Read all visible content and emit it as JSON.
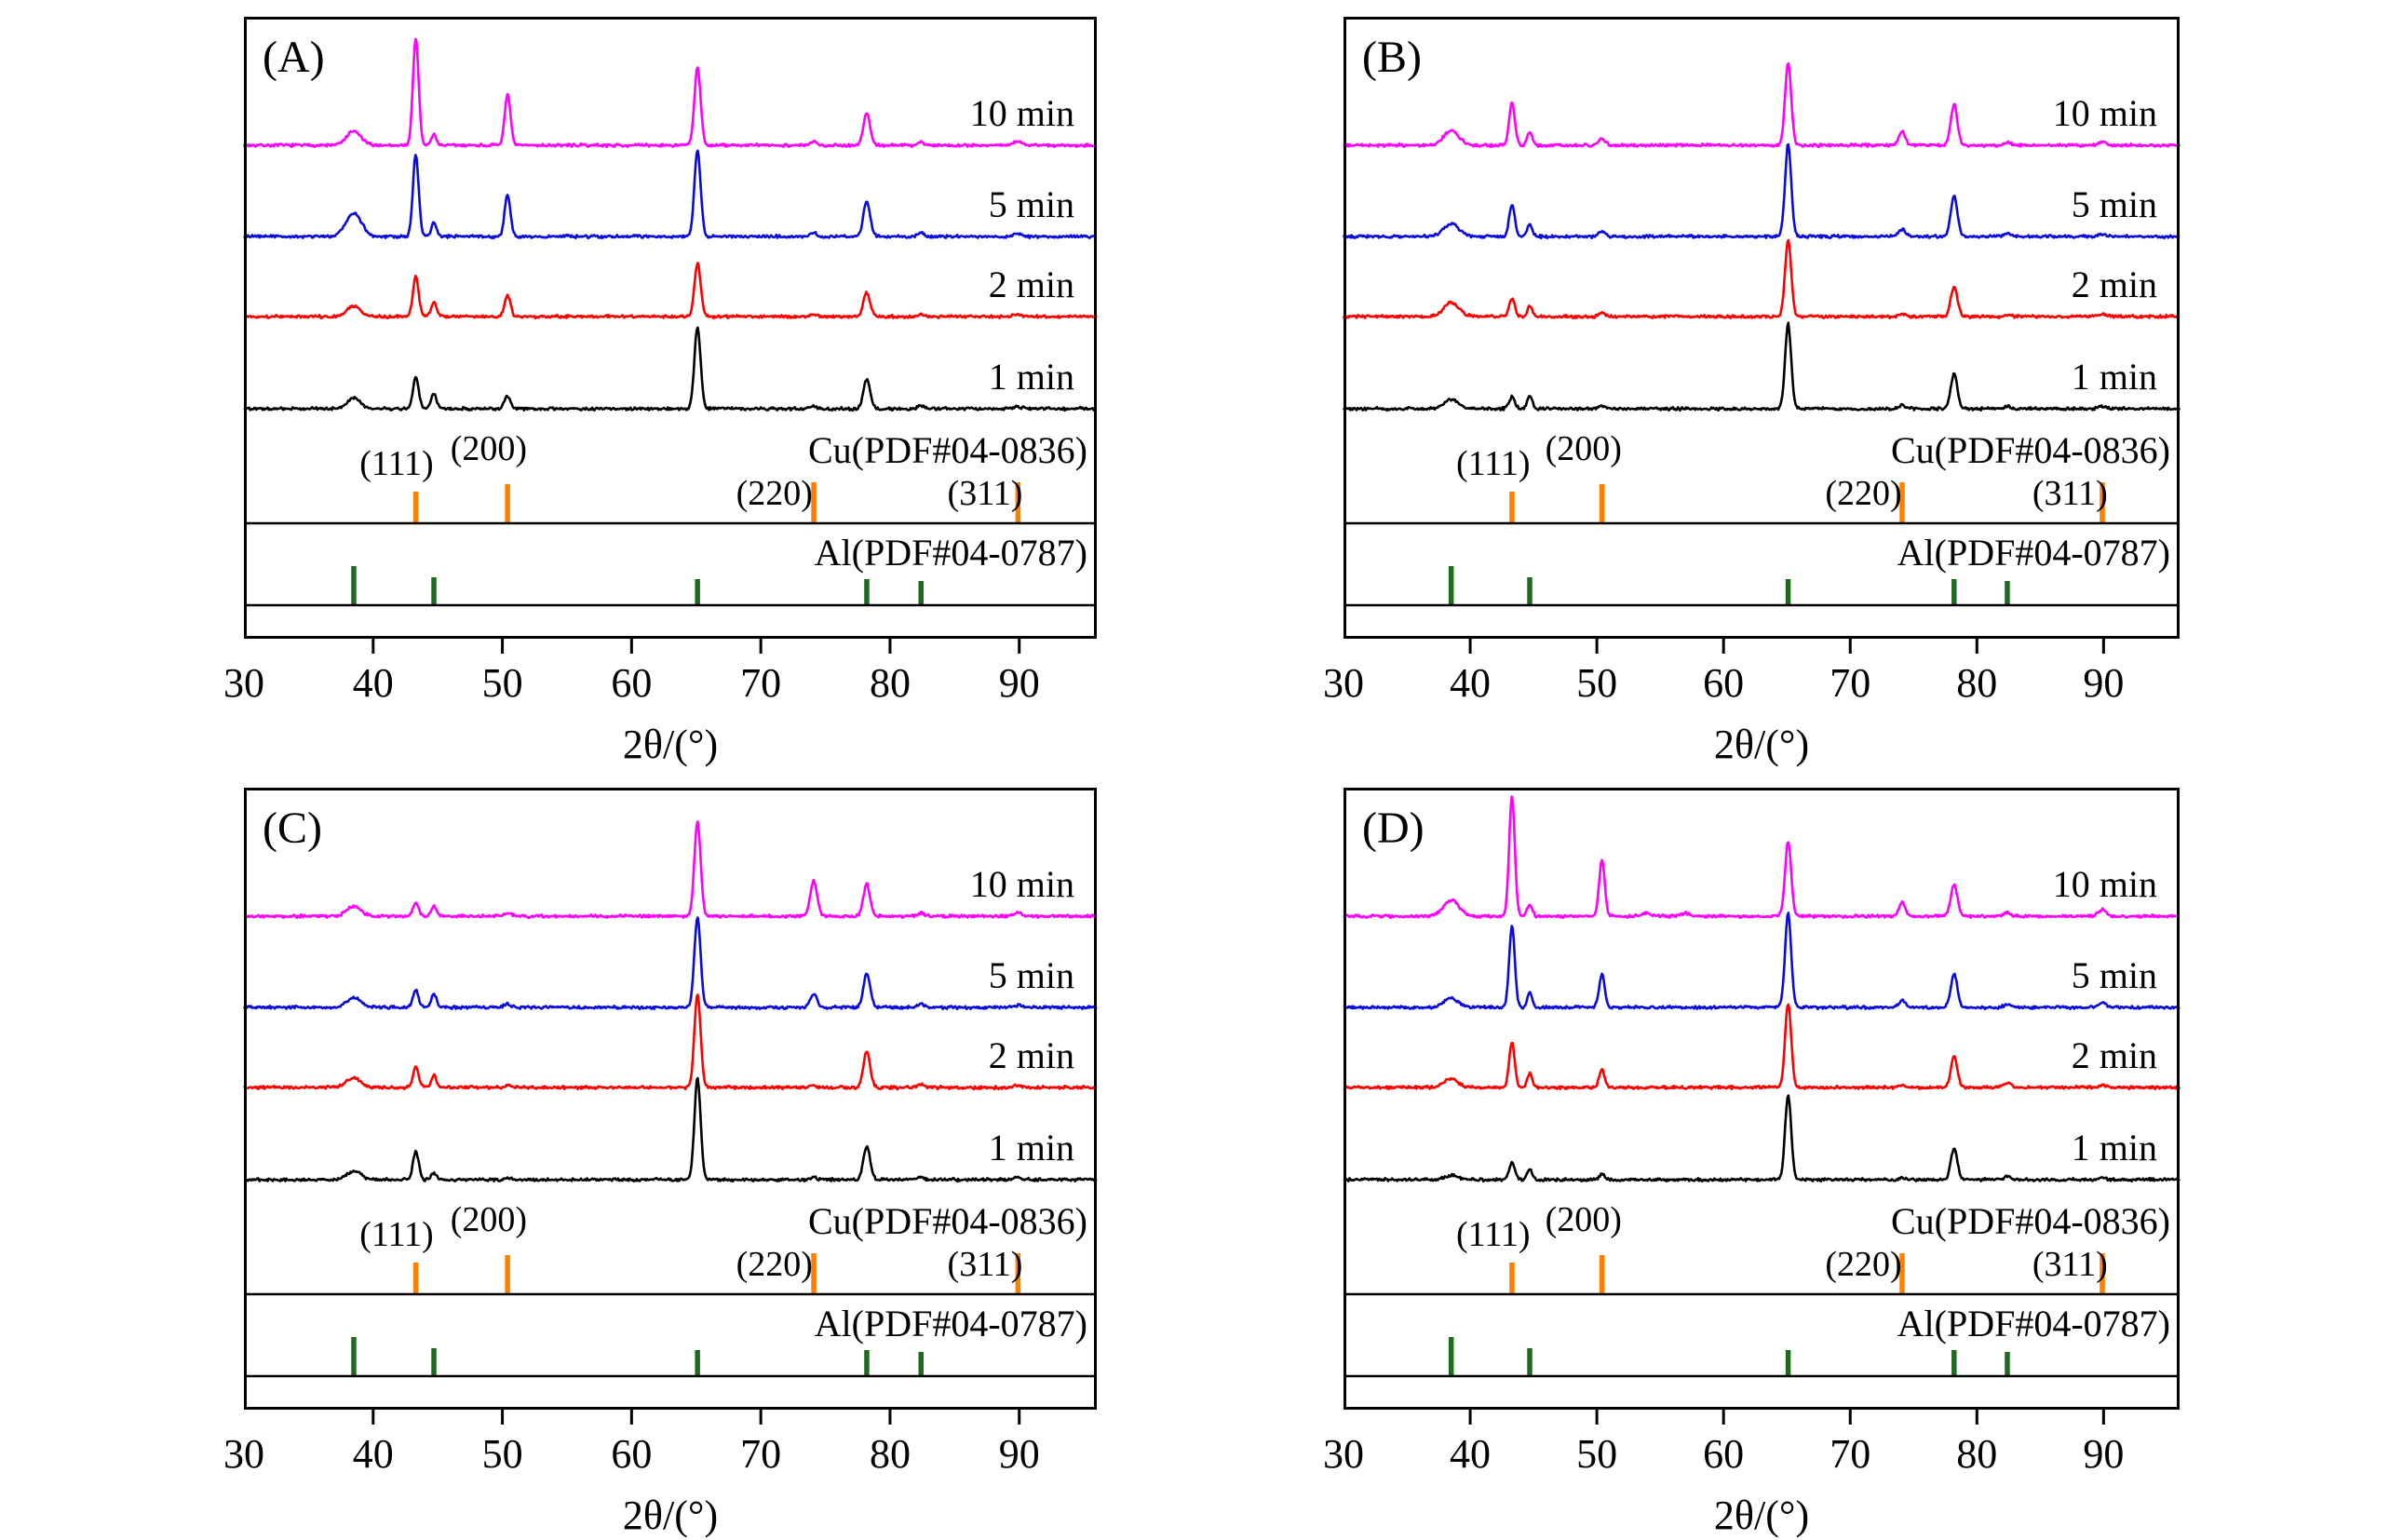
{
  "chart_data": {
    "type": "line",
    "title": "",
    "xlabel": "2θ/(°)",
    "x_range": [
      30,
      96
    ],
    "x_tick_labels": [
      30,
      40,
      50,
      60,
      70,
      80,
      90
    ],
    "x_tick_marks": [
      40,
      50,
      60,
      70,
      80,
      90
    ],
    "y_axis": "intensity (a.u.), stacked offsets, no y ticks shown",
    "peak_format": [
      "two_theta_deg",
      "relative_intensity",
      "sigma_deg"
    ],
    "references": [
      {
        "name": "Cu(PDF#04-0836)",
        "color": "#FF8000",
        "ticks": [
          {
            "two_theta": 43.3,
            "hkl": "(111)",
            "h": 34
          },
          {
            "two_theta": 50.4,
            "hkl": "(200)",
            "h": 42
          },
          {
            "two_theta": 74.1,
            "hkl": "(220)",
            "h": 44
          },
          {
            "two_theta": 89.9,
            "hkl": "(311)",
            "h": 44
          }
        ]
      },
      {
        "name": "Al(PDF#04-0787)",
        "color": "#1E6B1E",
        "ticks": [
          {
            "two_theta": 38.5,
            "h": 42
          },
          {
            "two_theta": 44.7,
            "h": 30
          },
          {
            "two_theta": 65.1,
            "h": 28
          },
          {
            "two_theta": 78.2,
            "h": 28
          },
          {
            "two_theta": 82.4,
            "h": 26
          }
        ]
      }
    ],
    "panels": [
      {
        "label": "(A)",
        "series": [
          {
            "name": "10 min",
            "color": "#FF00FF",
            "peaks": [
              [
                38.5,
                13,
                0.55
              ],
              [
                43.3,
                100,
                0.22
              ],
              [
                44.7,
                10,
                0.2
              ],
              [
                50.4,
                48,
                0.22
              ],
              [
                65.1,
                72,
                0.24
              ],
              [
                74.1,
                3,
                0.25
              ],
              [
                78.2,
                30,
                0.26
              ],
              [
                82.4,
                3,
                0.25
              ],
              [
                89.9,
                4,
                0.3
              ]
            ]
          },
          {
            "name": "5 min",
            "color": "#0B0BDC",
            "peaks": [
              [
                38.5,
                22,
                0.6
              ],
              [
                43.3,
                77,
                0.22
              ],
              [
                44.7,
                13,
                0.2
              ],
              [
                50.4,
                40,
                0.22
              ],
              [
                65.1,
                81,
                0.24
              ],
              [
                74.1,
                3,
                0.25
              ],
              [
                78.2,
                33,
                0.26
              ],
              [
                82.4,
                3,
                0.25
              ],
              [
                89.9,
                3,
                0.3
              ]
            ]
          },
          {
            "name": "2 min",
            "color": "#FF0000",
            "peaks": [
              [
                38.5,
                10,
                0.5
              ],
              [
                43.3,
                38,
                0.22
              ],
              [
                44.7,
                14,
                0.2
              ],
              [
                50.4,
                20,
                0.22
              ],
              [
                65.1,
                50,
                0.24
              ],
              [
                74.1,
                2,
                0.25
              ],
              [
                78.2,
                22,
                0.26
              ],
              [
                82.4,
                2,
                0.25
              ],
              [
                89.9,
                2,
                0.3
              ]
            ]
          },
          {
            "name": "1 min",
            "color": "#000000",
            "peaks": [
              [
                38.5,
                10,
                0.5
              ],
              [
                43.3,
                30,
                0.22
              ],
              [
                44.7,
                15,
                0.2
              ],
              [
                50.4,
                12,
                0.22
              ],
              [
                65.1,
                76,
                0.24
              ],
              [
                74.1,
                2,
                0.25
              ],
              [
                78.2,
                28,
                0.26
              ],
              [
                82.4,
                3,
                0.25
              ],
              [
                89.9,
                2,
                0.3
              ]
            ]
          }
        ]
      },
      {
        "label": "(B)",
        "series": [
          {
            "name": "10 min",
            "color": "#FF00FF",
            "peaks": [
              [
                38.5,
                14,
                0.6
              ],
              [
                43.3,
                40,
                0.22
              ],
              [
                44.7,
                12,
                0.2
              ],
              [
                50.4,
                7,
                0.25
              ],
              [
                65.1,
                77,
                0.24
              ],
              [
                74.1,
                13,
                0.25
              ],
              [
                78.2,
                38,
                0.26
              ],
              [
                82.4,
                3,
                0.25
              ],
              [
                89.9,
                3,
                0.3
              ]
            ]
          },
          {
            "name": "5 min",
            "color": "#0B0BDC",
            "peaks": [
              [
                38.5,
                12,
                0.6
              ],
              [
                43.3,
                30,
                0.22
              ],
              [
                44.7,
                11,
                0.2
              ],
              [
                50.4,
                5,
                0.25
              ],
              [
                65.1,
                87,
                0.24
              ],
              [
                74.1,
                7,
                0.25
              ],
              [
                78.2,
                38,
                0.26
              ],
              [
                82.4,
                3,
                0.25
              ],
              [
                89.9,
                2,
                0.3
              ]
            ]
          },
          {
            "name": "2 min",
            "color": "#FF0000",
            "peaks": [
              [
                38.5,
                13,
                0.6
              ],
              [
                43.3,
                17,
                0.22
              ],
              [
                44.7,
                10,
                0.2
              ],
              [
                50.4,
                4,
                0.25
              ],
              [
                65.1,
                72,
                0.24
              ],
              [
                74.1,
                3,
                0.25
              ],
              [
                78.2,
                28,
                0.26
              ],
              [
                82.4,
                2,
                0.25
              ],
              [
                89.9,
                2,
                0.3
              ]
            ]
          },
          {
            "name": "1 min",
            "color": "#000000",
            "peaks": [
              [
                38.5,
                9,
                0.55
              ],
              [
                43.3,
                11,
                0.22
              ],
              [
                44.7,
                12,
                0.2
              ],
              [
                50.4,
                3,
                0.25
              ],
              [
                65.1,
                79,
                0.24
              ],
              [
                74.1,
                3,
                0.25
              ],
              [
                78.2,
                33,
                0.26
              ],
              [
                82.4,
                2,
                0.25
              ],
              [
                89.9,
                2,
                0.3
              ]
            ]
          }
        ]
      },
      {
        "label": "(C)",
        "series": [
          {
            "name": "10 min",
            "color": "#FF00FF",
            "peaks": [
              [
                38.5,
                9,
                0.55
              ],
              [
                43.3,
                12,
                0.22
              ],
              [
                44.7,
                10,
                0.2
              ],
              [
                50.4,
                3,
                0.25
              ],
              [
                65.1,
                88,
                0.24
              ],
              [
                74.1,
                33,
                0.26
              ],
              [
                78.2,
                30,
                0.26
              ],
              [
                82.4,
                3,
                0.25
              ],
              [
                89.9,
                3,
                0.3
              ]
            ]
          },
          {
            "name": "5 min",
            "color": "#0B0BDC",
            "peaks": [
              [
                38.5,
                9,
                0.55
              ],
              [
                43.3,
                16,
                0.22
              ],
              [
                44.7,
                13,
                0.2
              ],
              [
                50.4,
                3,
                0.25
              ],
              [
                65.1,
                85,
                0.24
              ],
              [
                74.1,
                13,
                0.26
              ],
              [
                78.2,
                32,
                0.26
              ],
              [
                82.4,
                3,
                0.25
              ],
              [
                89.9,
                2,
                0.3
              ]
            ]
          },
          {
            "name": "2 min",
            "color": "#FF0000",
            "peaks": [
              [
                38.5,
                9,
                0.55
              ],
              [
                43.3,
                20,
                0.22
              ],
              [
                44.7,
                11,
                0.2
              ],
              [
                50.4,
                2,
                0.25
              ],
              [
                65.1,
                87,
                0.24
              ],
              [
                74.1,
                2,
                0.26
              ],
              [
                78.2,
                34,
                0.26
              ],
              [
                82.4,
                3,
                0.25
              ],
              [
                89.9,
                2,
                0.3
              ]
            ]
          },
          {
            "name": "1 min",
            "color": "#000000",
            "peaks": [
              [
                38.5,
                8,
                0.55
              ],
              [
                43.3,
                27,
                0.22
              ],
              [
                44.7,
                6,
                0.2
              ],
              [
                50.4,
                2,
                0.25
              ],
              [
                65.1,
                95,
                0.24
              ],
              [
                74.1,
                2,
                0.26
              ],
              [
                78.2,
                31,
                0.26
              ],
              [
                82.4,
                2,
                0.25
              ],
              [
                89.9,
                2,
                0.3
              ]
            ]
          }
        ]
      },
      {
        "label": "(D)",
        "series": [
          {
            "name": "10 min",
            "color": "#FF00FF",
            "peaks": [
              [
                38.5,
                15,
                0.6
              ],
              [
                43.3,
                112,
                0.22
              ],
              [
                44.7,
                11,
                0.2
              ],
              [
                50.4,
                52,
                0.22
              ],
              [
                53.9,
                3,
                0.3
              ],
              [
                57.0,
                3,
                0.3
              ],
              [
                65.1,
                70,
                0.24
              ],
              [
                74.1,
                13,
                0.25
              ],
              [
                78.2,
                30,
                0.26
              ],
              [
                82.4,
                3,
                0.25
              ],
              [
                89.9,
                6,
                0.3
              ]
            ]
          },
          {
            "name": "5 min",
            "color": "#0B0BDC",
            "peaks": [
              [
                38.5,
                9,
                0.55
              ],
              [
                43.3,
                76,
                0.22
              ],
              [
                44.7,
                13,
                0.2
              ],
              [
                50.4,
                31,
                0.22
              ],
              [
                65.1,
                88,
                0.24
              ],
              [
                74.1,
                7,
                0.25
              ],
              [
                78.2,
                31,
                0.26
              ],
              [
                82.4,
                3,
                0.25
              ],
              [
                89.9,
                5,
                0.3
              ]
            ]
          },
          {
            "name": "2 min",
            "color": "#FF0000",
            "peaks": [
              [
                38.5,
                8,
                0.55
              ],
              [
                43.3,
                42,
                0.22
              ],
              [
                44.7,
                13,
                0.2
              ],
              [
                50.4,
                17,
                0.22
              ],
              [
                65.1,
                79,
                0.24
              ],
              [
                74.1,
                2,
                0.25
              ],
              [
                78.2,
                29,
                0.26
              ],
              [
                82.4,
                5,
                0.25
              ],
              [
                89.9,
                2,
                0.3
              ]
            ]
          },
          {
            "name": "1 min",
            "color": "#000000",
            "peaks": [
              [
                38.5,
                4,
                0.5
              ],
              [
                43.3,
                16,
                0.22
              ],
              [
                44.7,
                10,
                0.2
              ],
              [
                50.4,
                5,
                0.22
              ],
              [
                65.1,
                79,
                0.24
              ],
              [
                74.1,
                2,
                0.25
              ],
              [
                78.2,
                29,
                0.26
              ],
              [
                82.4,
                3,
                0.25
              ],
              [
                89.9,
                2,
                0.3
              ]
            ]
          }
        ]
      }
    ]
  }
}
